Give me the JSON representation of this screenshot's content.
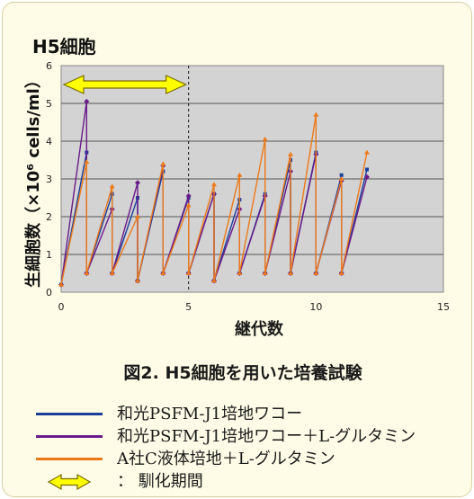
{
  "title": "H5細胞",
  "chart_data": {
    "type": "line",
    "xlabel": "継代数",
    "ylabel": "生細胞数（×10⁶ cells/ml）",
    "xlim": [
      0,
      15
    ],
    "ylim": [
      0,
      6
    ],
    "x_ticks": [
      "0",
      "5",
      "10",
      "15"
    ],
    "y_ticks": [
      "0",
      "1",
      "2",
      "3",
      "4",
      "5",
      "6"
    ],
    "grid": "horizontal",
    "background": "#d3d3d3",
    "reference_line_x": 5,
    "acclimation_period": [
      0,
      5
    ],
    "legend_position": "bottom",
    "series": [
      {
        "name": "和光PSFM-J1培地ワコー",
        "color": "#1c3f9c",
        "marker": "square",
        "x": [
          0,
          1,
          1,
          2,
          2,
          3,
          3,
          4,
          4,
          5,
          5,
          6,
          6,
          7,
          7,
          8,
          8,
          9,
          9,
          10,
          10,
          11,
          11,
          12
        ],
        "y": [
          0.2,
          3.7,
          0.5,
          2.6,
          0.5,
          2.5,
          0.3,
          3.2,
          0.5,
          2.5,
          0.5,
          2.6,
          0.3,
          2.45,
          0.5,
          2.6,
          0.5,
          3.5,
          0.5,
          3.7,
          0.5,
          3.1,
          0.5,
          3.25
        ]
      },
      {
        "name": "和光PSFM-J1培地ワコー＋L-グルタミン",
        "color": "#6a1b8a",
        "marker": "diamond",
        "x": [
          0,
          1,
          1,
          2,
          2,
          3,
          3,
          4,
          4,
          5,
          5,
          6,
          6,
          7,
          7,
          8,
          8,
          9,
          9,
          10,
          10,
          11,
          11,
          12
        ],
        "y": [
          0.2,
          5.05,
          0.5,
          2.2,
          0.5,
          2.9,
          0.3,
          3.35,
          0.5,
          2.55,
          0.5,
          2.6,
          0.3,
          2.2,
          0.5,
          2.55,
          0.5,
          3.2,
          0.5,
          3.65,
          0.5,
          2.95,
          0.5,
          3.05
        ]
      },
      {
        "name": "A社C液体培地＋L-グルタミン",
        "color": "#ec7a1a",
        "marker": "triangle",
        "x": [
          0,
          1,
          1,
          2,
          2,
          3,
          3,
          4,
          4,
          5,
          5,
          6,
          6,
          7,
          7,
          8,
          8,
          9,
          9,
          10,
          10,
          11,
          11,
          12
        ],
        "y": [
          0.2,
          3.45,
          0.5,
          2.8,
          0.5,
          2.0,
          0.3,
          3.4,
          0.5,
          2.3,
          0.5,
          2.85,
          0.3,
          3.1,
          0.5,
          4.05,
          0.5,
          3.65,
          0.5,
          4.7,
          0.5,
          3.0,
          0.5,
          3.7
        ]
      }
    ]
  },
  "caption": "図2. H5細胞を用いた培養試験",
  "legend": {
    "items": [
      {
        "label": "和光PSFM-J1培地ワコー",
        "color": "#1c3f9c"
      },
      {
        "label": "和光PSFM-J1培地ワコー＋L-グルタミン",
        "color": "#6a1b8a"
      },
      {
        "label": "A社C液体培地＋L-グルタミン",
        "color": "#ec7a1a"
      }
    ],
    "arrow_label": "： 馴化期間",
    "arrow_fill": "#ffff00",
    "arrow_stroke": "#7a6a00"
  }
}
